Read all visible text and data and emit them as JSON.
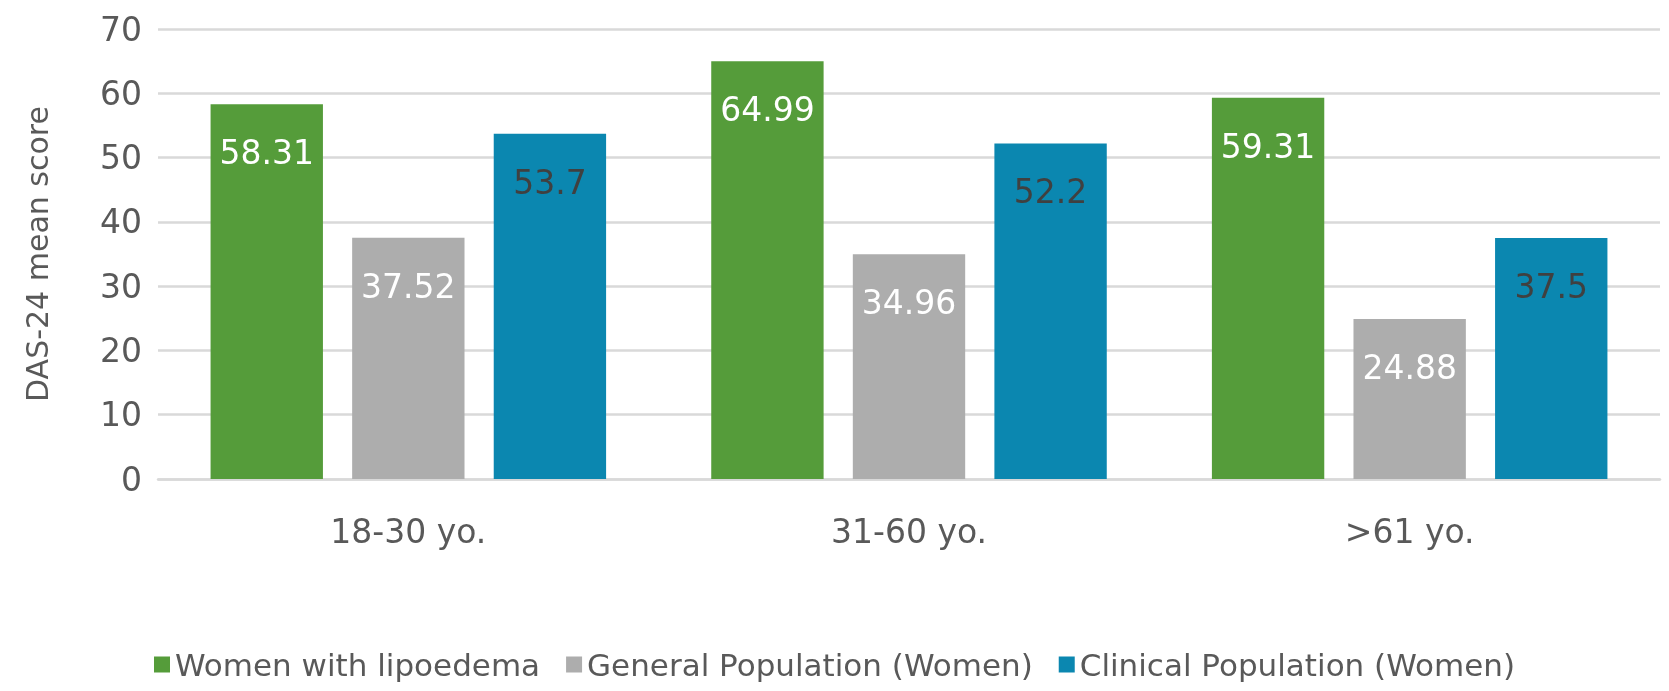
{
  "chart_data": {
    "type": "bar",
    "ylabel": "DAS-24 mean score",
    "categories": [
      "18-30 yo.",
      "31-60 yo.",
      ">61 yo."
    ],
    "series": [
      {
        "name": "Women with lipoedema",
        "color": "#559c3a",
        "values": [
          58.31,
          64.99,
          59.31
        ]
      },
      {
        "name": "General Population (Women)",
        "color": "#adadad",
        "values": [
          37.52,
          34.96,
          24.88
        ]
      },
      {
        "name": "Clinical Population (Women)",
        "color": "#0b87b0",
        "values": [
          53.7,
          52.2,
          37.5
        ]
      }
    ],
    "ylim": [
      0,
      70
    ],
    "yticks": [
      0,
      10,
      20,
      30,
      40,
      50,
      60,
      70
    ],
    "grid": "y",
    "legend": "bottom",
    "data_labels": true
  }
}
